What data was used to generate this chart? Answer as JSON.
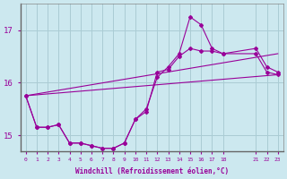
{
  "xlabel": "Windchill (Refroidissement éolien,°C)",
  "background_color": "#cce8ef",
  "grid_color": "#aaccd4",
  "line_color": "#990099",
  "xlim": [
    -0.5,
    23.5
  ],
  "ylim": [
    14.7,
    17.5
  ],
  "yticks": [
    15,
    16,
    17
  ],
  "xticks": [
    0,
    1,
    2,
    3,
    4,
    5,
    6,
    7,
    8,
    9,
    10,
    11,
    12,
    13,
    14,
    15,
    16,
    17,
    18,
    21,
    22,
    23
  ],
  "line1_x": [
    0,
    1,
    2,
    3,
    4,
    5,
    6,
    7,
    8,
    9,
    10,
    11,
    12,
    13,
    14,
    15,
    16,
    17,
    18,
    21,
    22,
    23
  ],
  "line1_y": [
    15.75,
    15.15,
    15.15,
    15.2,
    14.85,
    14.85,
    14.8,
    14.75,
    14.75,
    14.85,
    15.3,
    15.45,
    16.2,
    16.25,
    16.5,
    16.65,
    16.6,
    16.6,
    16.55,
    16.55,
    16.2,
    16.15
  ],
  "line2_x": [
    0,
    1,
    2,
    3,
    4,
    5,
    6,
    7,
    8,
    9,
    10,
    11,
    12,
    13,
    14,
    15,
    16,
    17,
    18,
    21,
    22,
    23
  ],
  "line2_y": [
    15.75,
    15.15,
    15.15,
    15.2,
    14.85,
    14.85,
    14.8,
    14.75,
    14.75,
    14.85,
    15.3,
    15.5,
    16.1,
    16.3,
    16.55,
    17.25,
    17.1,
    16.65,
    16.55,
    16.65,
    16.3,
    16.2
  ],
  "line3_x": [
    0,
    23
  ],
  "line3_y": [
    15.75,
    16.15
  ],
  "line4_x": [
    0,
    23
  ],
  "line4_y": [
    15.75,
    16.55
  ]
}
